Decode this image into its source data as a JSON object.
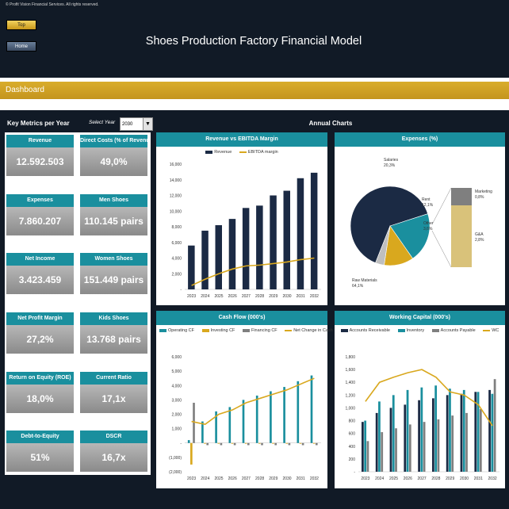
{
  "header": {
    "copyright": "© Profit Vision Financial Services. All rights reserved.",
    "top_button": "Top",
    "home_button": "Home",
    "title": "Shoes Production Factory Financial Model"
  },
  "dashboard": {
    "label": "Dashboard"
  },
  "metrics": {
    "title": "Key Metrics per Year",
    "select_label": "Select Year",
    "selected_year": "2030",
    "cards": [
      {
        "label": "Revenue",
        "value": "12.592.503"
      },
      {
        "label": "Direct Costs (% of Revenue)",
        "value": "49,0%"
      },
      {
        "label": "Expenses",
        "value": "7.860.207"
      },
      {
        "label": "Men Shoes",
        "value": "110.145 pairs"
      },
      {
        "label": "Net Income",
        "value": "3.423.459"
      },
      {
        "label": "Women Shoes",
        "value": "151.449 pairs"
      },
      {
        "label": "Net Profit Margin",
        "value": "27,2%"
      },
      {
        "label": "Kids Shoes",
        "value": "13.768 pairs"
      },
      {
        "label": "Return on Equity (ROE)",
        "value": "18,0%"
      },
      {
        "label": "Current Ratio",
        "value": "17,1x"
      },
      {
        "label": "Debt-to-Equity",
        "value": "51%"
      },
      {
        "label": "DSCR",
        "value": "16,7x"
      }
    ]
  },
  "annual_charts": {
    "title": "Annual Charts"
  },
  "colors": {
    "teal": "#1a8f9e",
    "navy": "#1b2a44",
    "gold": "#d9a81e",
    "gray": "#7f7f7f",
    "dark_bg": "#111a26"
  },
  "chart_data": [
    {
      "type": "bar",
      "title": "Revenue vs EBITDA Margin",
      "categories": [
        "2023",
        "2024",
        "2025",
        "2026",
        "2027",
        "2028",
        "2029",
        "2030",
        "2031",
        "2032"
      ],
      "series": [
        {
          "name": "Revenue",
          "kind": "bar",
          "color": "#1b2a44",
          "values": [
            5.6,
            7.5,
            8.2,
            9.0,
            10.4,
            10.7,
            12.0,
            12.6,
            14.2,
            14.9
          ]
        },
        {
          "name": "EBITDA margin",
          "kind": "line",
          "color": "#d9a81e",
          "values": [
            0.5,
            1.3,
            2.0,
            2.6,
            3.0,
            3.1,
            3.3,
            3.5,
            3.8,
            4.0
          ]
        }
      ],
      "ylim": [
        0,
        16
      ],
      "yticks": [
        "-",
        "2,000",
        "4,000",
        "6,000",
        "8,000",
        "10,000",
        "12,000",
        "14,000",
        "16,000"
      ]
    },
    {
      "type": "pie",
      "title": "Expenses (%)",
      "slices": [
        {
          "name": "Raw Materials",
          "value": 64.1,
          "label": "64,1%",
          "color": "#1b2a44"
        },
        {
          "name": "Salaries",
          "value": 20.3,
          "label": "20,3%",
          "color": "#1a8f9e"
        },
        {
          "name": "Rent",
          "value": 12.1,
          "label": "12,1%",
          "color": "#d9a81e"
        },
        {
          "name": "Other",
          "value": 3.6,
          "label": "3,6%",
          "color": "#bfbfbf"
        }
      ],
      "breakout": [
        {
          "name": "Marketing",
          "label": "0,8%",
          "color": "#7f7f7f"
        },
        {
          "name": "G&A",
          "label": "2,8%",
          "color": "#d9c27a"
        }
      ]
    },
    {
      "type": "bar",
      "title": "Cash Flow (000's)",
      "categories": [
        "2023",
        "2024",
        "2025",
        "2026",
        "2027",
        "2028",
        "2029",
        "2030",
        "2031",
        "2032"
      ],
      "series": [
        {
          "name": "Operating CF",
          "kind": "bar",
          "color": "#1a8f9e",
          "values": [
            0.2,
            1.5,
            2.2,
            2.5,
            3.0,
            3.3,
            3.6,
            3.9,
            4.3,
            4.7
          ]
        },
        {
          "name": "Investing CF",
          "kind": "bar",
          "color": "#d9a81e",
          "values": [
            -1.5,
            -0.05,
            -0.05,
            -0.05,
            -0.05,
            -0.05,
            -0.05,
            -0.05,
            -0.05,
            -0.05
          ]
        },
        {
          "name": "Financing CF",
          "kind": "bar",
          "color": "#7f7f7f",
          "values": [
            2.8,
            -0.15,
            -0.15,
            -0.15,
            -0.15,
            -0.15,
            -0.15,
            -0.15,
            -0.15,
            -0.15
          ]
        },
        {
          "name": "Net Change in Cash",
          "kind": "line",
          "color": "#d9a81e",
          "values": [
            1.5,
            1.3,
            2.0,
            2.3,
            2.8,
            3.1,
            3.4,
            3.7,
            4.1,
            4.5
          ]
        }
      ],
      "ylim": [
        -2,
        6
      ],
      "yticks": [
        "(2,000)",
        "(1,000)",
        "-",
        "1,000",
        "2,000",
        "3,000",
        "4,000",
        "5,000",
        "6,000"
      ]
    },
    {
      "type": "bar",
      "title": "Working Capital (000's)",
      "categories": [
        "2023",
        "2024",
        "2025",
        "2026",
        "2027",
        "2028",
        "2029",
        "2030",
        "2031",
        "2032"
      ],
      "series": [
        {
          "name": "Accounts Receivable",
          "kind": "bar",
          "color": "#1b2a44",
          "values": [
            0.78,
            0.92,
            1.0,
            1.05,
            1.12,
            1.15,
            1.2,
            1.22,
            1.25,
            1.28
          ]
        },
        {
          "name": "Inventory",
          "kind": "bar",
          "color": "#1a8f9e",
          "values": [
            0.8,
            1.1,
            1.2,
            1.28,
            1.32,
            1.35,
            1.3,
            1.28,
            1.25,
            1.22
          ]
        },
        {
          "name": "Accounts Payable",
          "kind": "bar",
          "color": "#7f7f7f",
          "values": [
            0.48,
            0.62,
            0.68,
            0.74,
            0.78,
            0.82,
            0.88,
            0.92,
            0.98,
            1.45
          ]
        },
        {
          "name": "WC",
          "kind": "line",
          "color": "#d9a81e",
          "values": [
            1.1,
            1.4,
            1.48,
            1.55,
            1.6,
            1.48,
            1.25,
            1.2,
            1.05,
            0.72
          ]
        }
      ],
      "ylim": [
        0,
        1.8
      ],
      "yticks": [
        "-",
        "200",
        "400",
        "600",
        "800",
        "1,000",
        "1,200",
        "1,400",
        "1,600",
        "1,800"
      ]
    }
  ]
}
